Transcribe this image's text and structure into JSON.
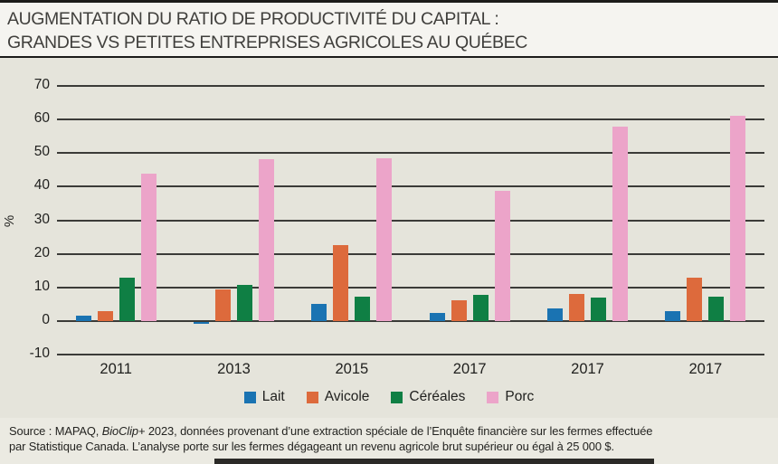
{
  "title": {
    "line1": "AUGMENTATION DU RATIO DE PRODUCTIVITÉ DU CAPITAL :",
    "line2": "GRANDES VS PETITES ENTREPRISES AGRICOLES AU QUÉBEC"
  },
  "chart_data": {
    "type": "bar",
    "categories": [
      "2011",
      "2013",
      "2015",
      "2017",
      "2017",
      "2017"
    ],
    "series": [
      {
        "name": "Lait",
        "color": "#1a73b2",
        "values": [
          1.7,
          -0.7,
          5.0,
          2.3,
          3.8,
          3.0
        ]
      },
      {
        "name": "Avicole",
        "color": "#dd6a3c",
        "values": [
          3.0,
          9.3,
          22.5,
          6.2,
          8.0,
          13.0
        ]
      },
      {
        "name": "Céréales",
        "color": "#0f7f44",
        "values": [
          13.0,
          10.8,
          7.2,
          7.8,
          7.0,
          7.3
        ]
      },
      {
        "name": "Porc",
        "color": "#eca4c9",
        "values": [
          44.0,
          48.2,
          48.5,
          38.7,
          58.0,
          61.0
        ]
      }
    ],
    "ylabel": "%",
    "ylim": [
      -10,
      70
    ],
    "ytick_step": 10,
    "grid": true,
    "legend_position": "bottom"
  },
  "source": {
    "prefix": "Source : MAPAQ, ",
    "italic": "BioClip+",
    "line1_rest": " 2023, données provenant d’une extraction spéciale de l’Enquête financière sur les fermes effectuée",
    "line2": "par Statistique Canada. L’analyse porte sur les fermes dégageant un revenu agricole brut supérieur ou égal à 25 000 $."
  },
  "colors": {
    "panel_background": "#e5e4db",
    "page_background": "#f5f4f0",
    "gridline": "#3b3b38",
    "rule": "#1c1c1a"
  }
}
